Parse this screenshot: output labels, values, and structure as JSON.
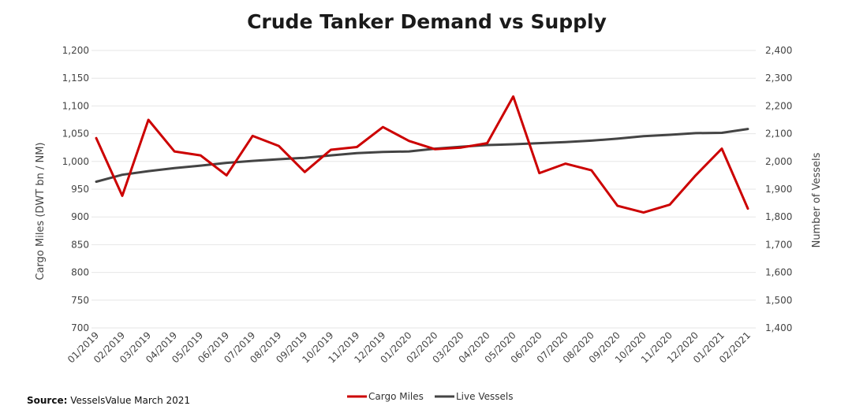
{
  "chart_data": {
    "type": "line",
    "title": "Crude Tanker Demand vs Supply",
    "categories": [
      "01/2019",
      "02/2019",
      "03/2019",
      "04/2019",
      "05/2019",
      "06/2019",
      "07/2019",
      "08/2019",
      "09/2019",
      "10/2019",
      "11/2019",
      "12/2019",
      "01/2020",
      "02/2020",
      "03/2020",
      "04/2020",
      "05/2020",
      "06/2020",
      "07/2020",
      "08/2020",
      "09/2020",
      "10/2020",
      "11/2020",
      "12/2020",
      "01/2021",
      "02/2021"
    ],
    "ylabel_left": "Cargo Miles (DWT bn / NM)",
    "ylabel_right": "Number of Vessels",
    "ylim_left": [
      700,
      1200
    ],
    "ylim_right": [
      1400,
      2400
    ],
    "yticks_left": [
      "1,200",
      "1,150",
      "1,100",
      "1,050",
      "1,000",
      "950",
      "900",
      "850",
      "800",
      "750",
      "700"
    ],
    "yticks_right": [
      "2,400",
      "2,300",
      "2,200",
      "2,100",
      "2,000",
      "1,900",
      "1,800",
      "1,700",
      "1,600",
      "1,500",
      "1,400"
    ],
    "grid": true,
    "legend_position": "bottom",
    "series": [
      {
        "name": "Cargo Miles",
        "axis": "left",
        "color": "#cc0000",
        "values": [
          1042,
          938,
          1075,
          1018,
          1011,
          975,
          1046,
          1028,
          981,
          1021,
          1026,
          1062,
          1037,
          1022,
          1025,
          1033,
          1117,
          979,
          996,
          984,
          920,
          908,
          922,
          975,
          1023,
          915
        ]
      },
      {
        "name": "Live Vessels",
        "axis": "right",
        "color": "#444444",
        "values": [
          1927,
          1952,
          1965,
          1976,
          1985,
          1995,
          2002,
          2008,
          2013,
          2022,
          2030,
          2034,
          2036,
          2046,
          2053,
          2059,
          2062,
          2066,
          2070,
          2075,
          2082,
          2091,
          2096,
          2102,
          2103,
          2117
        ]
      }
    ]
  },
  "source": {
    "label": "Source:",
    "text": "VesselsValue March 2021"
  }
}
